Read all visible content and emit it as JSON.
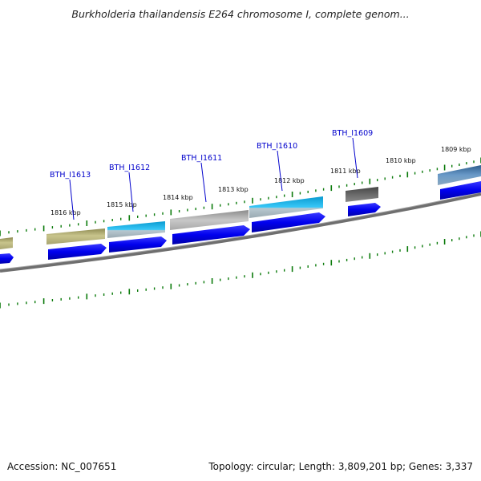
{
  "title": "Burkholderia thailandensis E264 chromosome I, complete genom...",
  "footer": {
    "accession": "Accession: NC_007651",
    "summary": "Topology: circular; Length: 3,809,201 bp; Genes: 3,337"
  },
  "scale_labels": [
    "1816 kbp",
    "1815 kbp",
    "1814 kbp",
    "1813 kbp",
    "1812 kbp",
    "1811 kbp",
    "1810 kbp",
    "1809 kbp"
  ],
  "gene_labels": [
    "BTH_I1613",
    "BTH_I1612",
    "BTH_I1611",
    "BTH_I1610",
    "BTH_I1609"
  ],
  "colors": {
    "backbone": "#7a7a7a",
    "ticks": "#0a7a0a",
    "cds": "#0000ee",
    "gene_label": "#0000cc",
    "feature_olive": "#b8b47a",
    "feature_cyan": "#22bbee",
    "feature_silver": "#b4b4b4",
    "feature_dark": "#555555",
    "feature_steel": "#4a7ab0"
  }
}
